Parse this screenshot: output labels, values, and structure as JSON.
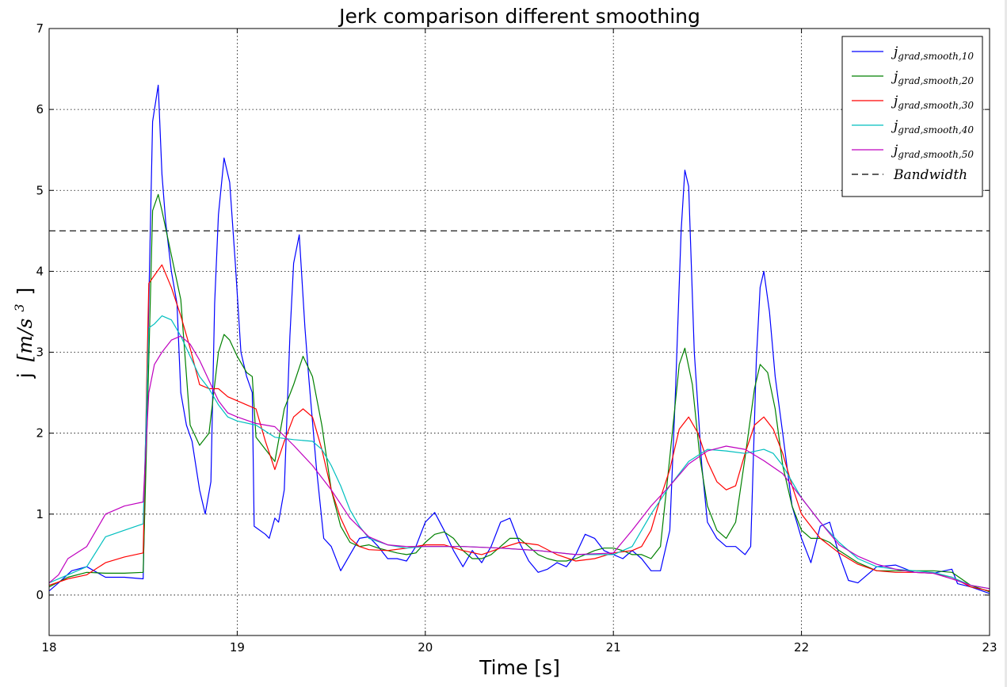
{
  "chart_data": {
    "type": "line",
    "title": "Jerk comparison different smoothing",
    "xlabel": "Time [s]",
    "ylabel": {
      "prefix": "j",
      "unit": "[m/s",
      "exp": "3",
      "close": "]"
    },
    "xlim": [
      18,
      23
    ],
    "ylim": [
      -0.5,
      7
    ],
    "xticks": [
      18,
      19,
      20,
      21,
      22,
      23
    ],
    "yticks": [
      0,
      1,
      2,
      3,
      4,
      5,
      6,
      7
    ],
    "grid": true,
    "legend_position": "top-right",
    "bandwidth": {
      "name_base": "Bandwidth",
      "value": 4.5,
      "color": "#000000"
    },
    "series": [
      {
        "name_base": "j",
        "name_sub": "grad,smooth,10",
        "color": "#0000ff",
        "x": [
          18.0,
          18.05,
          18.12,
          18.2,
          18.3,
          18.4,
          18.5,
          18.52,
          18.55,
          18.58,
          18.6,
          18.62,
          18.65,
          18.68,
          18.7,
          18.73,
          18.76,
          18.8,
          18.83,
          18.86,
          18.88,
          18.9,
          18.93,
          18.96,
          18.99,
          19.02,
          19.05,
          19.08,
          19.09,
          19.15,
          19.17,
          19.2,
          19.22,
          19.25,
          19.28,
          19.3,
          19.33,
          19.36,
          19.38,
          19.42,
          19.46,
          19.5,
          19.55,
          19.6,
          19.65,
          19.7,
          19.75,
          19.8,
          19.85,
          19.9,
          19.95,
          20.0,
          20.05,
          20.1,
          20.15,
          20.2,
          20.25,
          20.3,
          20.35,
          20.4,
          20.45,
          20.5,
          20.55,
          20.6,
          20.65,
          20.7,
          20.75,
          20.8,
          20.85,
          20.9,
          20.95,
          21.0,
          21.05,
          21.1,
          21.15,
          21.2,
          21.25,
          21.3,
          21.33,
          21.36,
          21.38,
          21.4,
          21.43,
          21.47,
          21.5,
          21.55,
          21.6,
          21.65,
          21.7,
          21.73,
          21.76,
          21.78,
          21.8,
          21.83,
          21.86,
          21.9,
          21.95,
          22.0,
          22.05,
          22.1,
          22.15,
          22.2,
          22.25,
          22.3,
          22.4,
          22.5,
          22.6,
          22.7,
          22.8,
          22.83,
          22.9,
          23.0
        ],
        "y": [
          0.05,
          0.15,
          0.3,
          0.35,
          0.22,
          0.22,
          0.2,
          2.5,
          5.85,
          6.3,
          5.2,
          4.6,
          4.0,
          3.6,
          2.5,
          2.1,
          1.9,
          1.3,
          1.0,
          1.4,
          3.6,
          4.7,
          5.4,
          5.1,
          4.1,
          3.0,
          2.7,
          2.5,
          0.85,
          0.75,
          0.7,
          0.95,
          0.9,
          1.3,
          3.2,
          4.1,
          4.45,
          3.3,
          2.7,
          1.6,
          0.7,
          0.6,
          0.3,
          0.5,
          0.7,
          0.72,
          0.6,
          0.45,
          0.45,
          0.42,
          0.6,
          0.9,
          1.02,
          0.8,
          0.55,
          0.35,
          0.55,
          0.4,
          0.6,
          0.9,
          0.95,
          0.65,
          0.42,
          0.28,
          0.32,
          0.4,
          0.35,
          0.5,
          0.75,
          0.7,
          0.55,
          0.5,
          0.45,
          0.55,
          0.45,
          0.3,
          0.3,
          0.8,
          2.5,
          4.5,
          5.25,
          5.05,
          3.0,
          1.6,
          0.9,
          0.7,
          0.6,
          0.6,
          0.5,
          0.6,
          2.9,
          3.8,
          4.0,
          3.5,
          2.7,
          2.0,
          1.1,
          0.7,
          0.4,
          0.85,
          0.9,
          0.5,
          0.18,
          0.15,
          0.35,
          0.37,
          0.28,
          0.27,
          0.32,
          0.14,
          0.1,
          0.02
        ]
      },
      {
        "name_base": "j",
        "name_sub": "grad,smooth,20",
        "color": "#008000",
        "x": [
          18.0,
          18.1,
          18.2,
          18.3,
          18.4,
          18.5,
          18.53,
          18.55,
          18.58,
          18.6,
          18.65,
          18.7,
          18.75,
          18.8,
          18.85,
          18.9,
          18.93,
          18.96,
          19.0,
          19.05,
          19.08,
          19.1,
          19.15,
          19.2,
          19.25,
          19.3,
          19.35,
          19.4,
          19.45,
          19.5,
          19.55,
          19.6,
          19.65,
          19.7,
          19.75,
          19.8,
          19.85,
          19.9,
          19.95,
          20.0,
          20.05,
          20.1,
          20.15,
          20.2,
          20.25,
          20.3,
          20.35,
          20.4,
          20.45,
          20.5,
          20.55,
          20.6,
          20.65,
          20.7,
          20.75,
          20.8,
          20.85,
          20.9,
          20.95,
          21.0,
          21.05,
          21.1,
          21.15,
          21.2,
          21.25,
          21.3,
          21.35,
          21.38,
          21.42,
          21.46,
          21.5,
          21.55,
          21.6,
          21.65,
          21.7,
          21.75,
          21.78,
          21.82,
          21.86,
          21.9,
          21.95,
          22.0,
          22.05,
          22.1,
          22.15,
          22.2,
          22.3,
          22.4,
          22.5,
          22.6,
          22.7,
          22.8,
          22.9,
          23.0
        ],
        "y": [
          0.1,
          0.22,
          0.28,
          0.27,
          0.27,
          0.28,
          2.9,
          4.75,
          4.95,
          4.75,
          4.2,
          3.65,
          2.1,
          1.85,
          2.0,
          3.0,
          3.22,
          3.15,
          2.95,
          2.75,
          2.7,
          1.95,
          1.8,
          1.65,
          2.3,
          2.6,
          2.95,
          2.7,
          2.1,
          1.3,
          0.85,
          0.65,
          0.6,
          0.62,
          0.58,
          0.55,
          0.52,
          0.5,
          0.52,
          0.65,
          0.75,
          0.78,
          0.7,
          0.55,
          0.45,
          0.45,
          0.5,
          0.6,
          0.7,
          0.7,
          0.6,
          0.5,
          0.45,
          0.42,
          0.42,
          0.45,
          0.5,
          0.55,
          0.58,
          0.58,
          0.55,
          0.5,
          0.5,
          0.45,
          0.6,
          1.7,
          2.85,
          3.05,
          2.6,
          1.7,
          1.1,
          0.8,
          0.7,
          0.9,
          1.7,
          2.55,
          2.85,
          2.75,
          2.3,
          1.6,
          1.1,
          0.8,
          0.7,
          0.7,
          0.65,
          0.55,
          0.4,
          0.3,
          0.3,
          0.3,
          0.3,
          0.28,
          0.12,
          0.04
        ]
      },
      {
        "name_base": "j",
        "name_sub": "grad,smooth,30",
        "color": "#ff0000",
        "x": [
          18.0,
          18.1,
          18.2,
          18.3,
          18.4,
          18.5,
          18.53,
          18.56,
          18.6,
          18.65,
          18.7,
          18.75,
          18.8,
          18.85,
          18.9,
          18.95,
          19.0,
          19.05,
          19.1,
          19.15,
          19.2,
          19.25,
          19.3,
          19.35,
          19.4,
          19.45,
          19.5,
          19.55,
          19.6,
          19.65,
          19.7,
          19.8,
          19.9,
          20.0,
          20.1,
          20.2,
          20.3,
          20.4,
          20.5,
          20.6,
          20.7,
          20.8,
          20.9,
          21.0,
          21.1,
          21.15,
          21.2,
          21.25,
          21.3,
          21.35,
          21.4,
          21.45,
          21.5,
          21.55,
          21.6,
          21.65,
          21.7,
          21.75,
          21.8,
          21.85,
          21.9,
          21.95,
          22.0,
          22.1,
          22.2,
          22.3,
          22.4,
          22.5,
          22.6,
          22.7,
          22.8,
          22.9,
          23.0
        ],
        "y": [
          0.12,
          0.2,
          0.25,
          0.4,
          0.47,
          0.52,
          3.85,
          3.95,
          4.08,
          3.8,
          3.45,
          3.05,
          2.6,
          2.55,
          2.55,
          2.45,
          2.4,
          2.35,
          2.3,
          1.9,
          1.55,
          1.9,
          2.2,
          2.3,
          2.2,
          1.8,
          1.3,
          0.95,
          0.7,
          0.6,
          0.56,
          0.55,
          0.58,
          0.62,
          0.62,
          0.55,
          0.5,
          0.58,
          0.65,
          0.62,
          0.5,
          0.42,
          0.45,
          0.52,
          0.55,
          0.6,
          0.8,
          1.2,
          1.55,
          2.05,
          2.2,
          2.0,
          1.65,
          1.4,
          1.3,
          1.35,
          1.75,
          2.1,
          2.2,
          2.05,
          1.75,
          1.35,
          1.0,
          0.7,
          0.52,
          0.38,
          0.3,
          0.28,
          0.28,
          0.27,
          0.22,
          0.1,
          0.05
        ]
      },
      {
        "name_base": "j",
        "name_sub": "grad,smooth,40",
        "color": "#00bfbf",
        "x": [
          18.0,
          18.1,
          18.2,
          18.3,
          18.4,
          18.5,
          18.53,
          18.56,
          18.6,
          18.65,
          18.7,
          18.75,
          18.8,
          18.85,
          18.9,
          18.95,
          19.0,
          19.1,
          19.2,
          19.3,
          19.4,
          19.45,
          19.5,
          19.55,
          19.6,
          19.65,
          19.7,
          19.8,
          19.9,
          20.0,
          20.2,
          20.4,
          20.6,
          20.8,
          21.0,
          21.1,
          21.2,
          21.3,
          21.4,
          21.5,
          21.6,
          21.7,
          21.8,
          21.85,
          21.9,
          21.95,
          22.0,
          22.1,
          22.2,
          22.3,
          22.4,
          22.5,
          22.6,
          22.7,
          22.8,
          22.9,
          23.0
        ],
        "y": [
          0.15,
          0.25,
          0.35,
          0.72,
          0.8,
          0.88,
          3.3,
          3.35,
          3.45,
          3.4,
          3.2,
          2.95,
          2.7,
          2.55,
          2.35,
          2.2,
          2.15,
          2.1,
          1.95,
          1.92,
          1.9,
          1.8,
          1.6,
          1.35,
          1.05,
          0.85,
          0.7,
          0.62,
          0.58,
          0.6,
          0.6,
          0.58,
          0.55,
          0.5,
          0.5,
          0.6,
          1.0,
          1.35,
          1.65,
          1.8,
          1.78,
          1.75,
          1.8,
          1.75,
          1.6,
          1.4,
          1.2,
          0.9,
          0.65,
          0.45,
          0.35,
          0.32,
          0.3,
          0.28,
          0.22,
          0.12,
          0.08
        ]
      },
      {
        "name_base": "j",
        "name_sub": "grad,smooth,50",
        "color": "#bf00bf",
        "x": [
          18.0,
          18.05,
          18.1,
          18.2,
          18.3,
          18.4,
          18.5,
          18.53,
          18.56,
          18.6,
          18.65,
          18.7,
          18.75,
          18.8,
          18.85,
          18.9,
          18.95,
          19.0,
          19.1,
          19.2,
          19.3,
          19.4,
          19.5,
          19.6,
          19.7,
          19.8,
          19.9,
          20.0,
          20.2,
          20.4,
          20.6,
          20.8,
          21.0,
          21.1,
          21.2,
          21.3,
          21.4,
          21.5,
          21.6,
          21.7,
          21.8,
          21.9,
          22.0,
          22.1,
          22.2,
          22.3,
          22.4,
          22.5,
          22.6,
          22.7,
          22.8,
          22.9,
          23.0
        ],
        "y": [
          0.15,
          0.25,
          0.45,
          0.6,
          1.0,
          1.1,
          1.15,
          2.5,
          2.85,
          3.0,
          3.15,
          3.2,
          3.1,
          2.9,
          2.65,
          2.4,
          2.25,
          2.2,
          2.12,
          2.08,
          1.85,
          1.6,
          1.3,
          0.95,
          0.72,
          0.62,
          0.6,
          0.6,
          0.6,
          0.58,
          0.55,
          0.5,
          0.52,
          0.8,
          1.1,
          1.35,
          1.62,
          1.78,
          1.84,
          1.8,
          1.66,
          1.5,
          1.2,
          0.9,
          0.62,
          0.48,
          0.38,
          0.32,
          0.28,
          0.27,
          0.2,
          0.12,
          0.08
        ]
      }
    ]
  }
}
